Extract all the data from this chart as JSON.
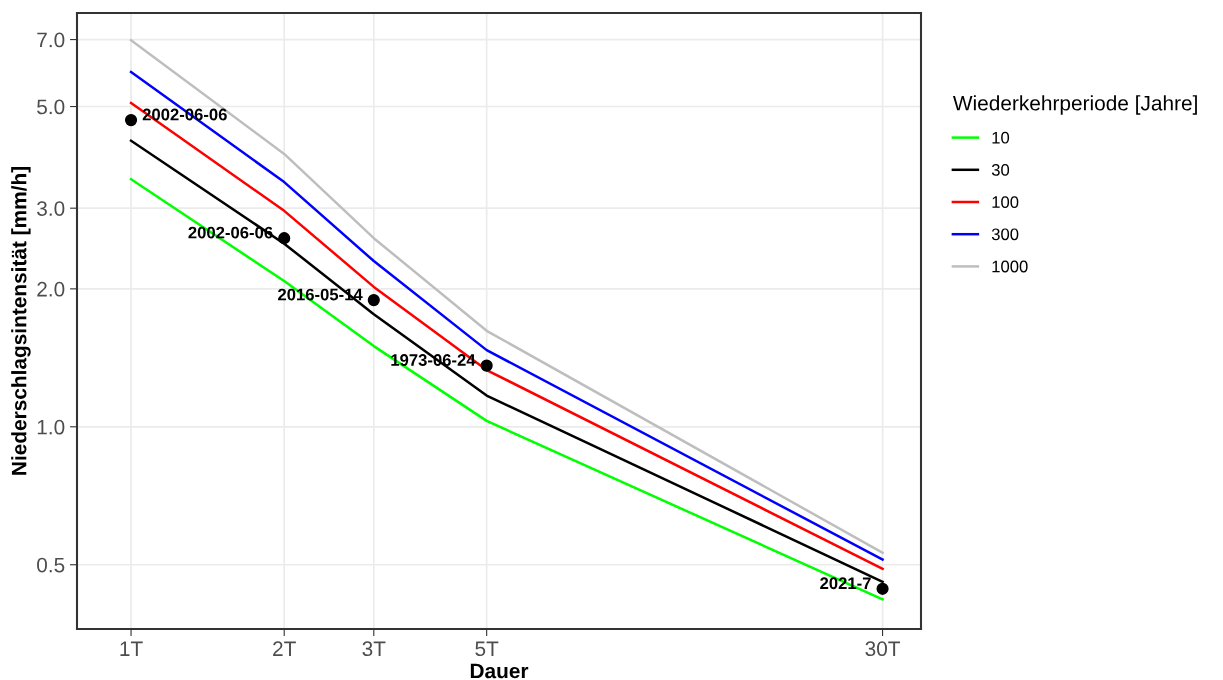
{
  "chart_data": {
    "type": "line",
    "xlabel": "Dauer",
    "ylabel": "Niederschlagsintensität [mm/h]",
    "legend_title": "Wiederkehrperiode [Jahre]",
    "log": "xy",
    "grid": true,
    "legend": "right",
    "line_style": "solid",
    "marker": "none",
    "x": [
      1,
      2,
      3,
      5,
      30
    ],
    "xlim": [
      0.783,
      35.7
    ],
    "xticks": [
      {
        "value": 1,
        "label": "1T"
      },
      {
        "value": 2,
        "label": "2T"
      },
      {
        "value": 3,
        "label": "3T"
      },
      {
        "value": 5,
        "label": "5T"
      },
      {
        "value": 30,
        "label": "30T"
      }
    ],
    "ylim": [
      0.362,
      8.0
    ],
    "yticks": [
      {
        "value": 0.5,
        "label": "0.5"
      },
      {
        "value": 1,
        "label": "1.0"
      },
      {
        "value": 2,
        "label": "2.0"
      },
      {
        "value": 3,
        "label": "3.0"
      },
      {
        "value": 5,
        "label": "5.0"
      },
      {
        "value": 7,
        "label": "7.0"
      }
    ],
    "series": [
      {
        "name": "10",
        "color": "#00ff00",
        "values": [
          3.47,
          2.08,
          1.5,
          1.03,
          0.42
        ]
      },
      {
        "name": "30",
        "color": "#000000",
        "values": [
          4.21,
          2.51,
          1.76,
          1.17,
          0.459
        ]
      },
      {
        "name": "100",
        "color": "#ff0000",
        "values": [
          5.09,
          2.96,
          2.02,
          1.33,
          0.49
        ]
      },
      {
        "name": "300",
        "color": "#0000ff",
        "values": [
          5.95,
          3.42,
          2.3,
          1.47,
          0.513
        ]
      },
      {
        "name": "1000",
        "color": "#bebebe",
        "values": [
          6.98,
          3.94,
          2.58,
          1.62,
          0.531
        ]
      },
      {
        "type": "scatter",
        "color": "#000000",
        "marker": "circle",
        "values": [
          4.67,
          2.58,
          1.89,
          1.36,
          0.443
        ]
      }
    ],
    "annotations": [
      {
        "text": "2002-06-06",
        "x": 1,
        "y": 4.67
      },
      {
        "text": "2002-06-06",
        "x": 2,
        "y": 2.58
      },
      {
        "text": "2016-05-14",
        "x": 3,
        "y": 1.89
      },
      {
        "text": "1973-06-24",
        "x": 5,
        "y": 1.36
      },
      {
        "text": "2021-7",
        "x": 30,
        "y": 0.443
      }
    ]
  }
}
